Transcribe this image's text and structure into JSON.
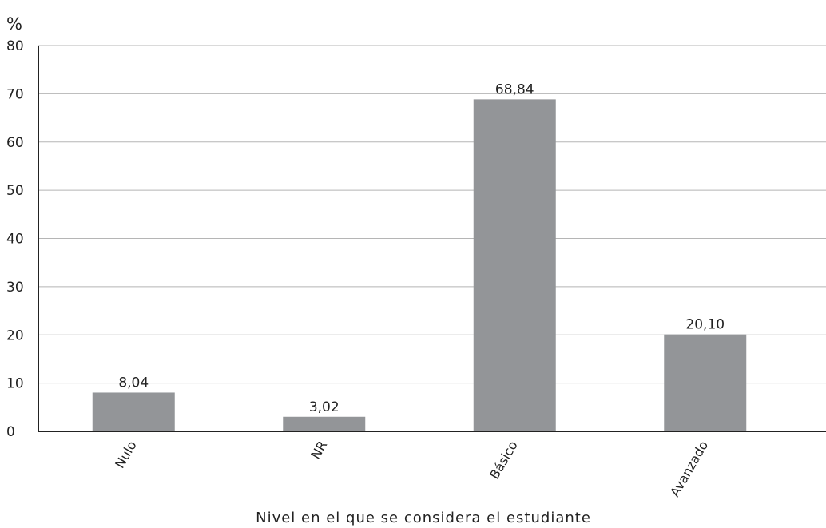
{
  "chart_data": {
    "type": "bar",
    "categories": [
      "Nulo",
      "NR",
      "Básico",
      "Avanzado"
    ],
    "values": [
      8.04,
      3.02,
      68.84,
      20.1
    ],
    "value_labels": [
      "8,04",
      "3,02",
      "68,84",
      "20,10"
    ],
    "title": "",
    "xlabel": "Nivel en el que se considera el estudiante",
    "ylabel": "%",
    "ylim": [
      0,
      80
    ],
    "yticks": [
      0,
      10,
      20,
      30,
      40,
      50,
      60,
      70,
      80
    ],
    "grid": true,
    "legend": "none",
    "colors": {
      "bar": "#939598",
      "grid": "#b5b5b5",
      "axis": "#222222"
    }
  }
}
